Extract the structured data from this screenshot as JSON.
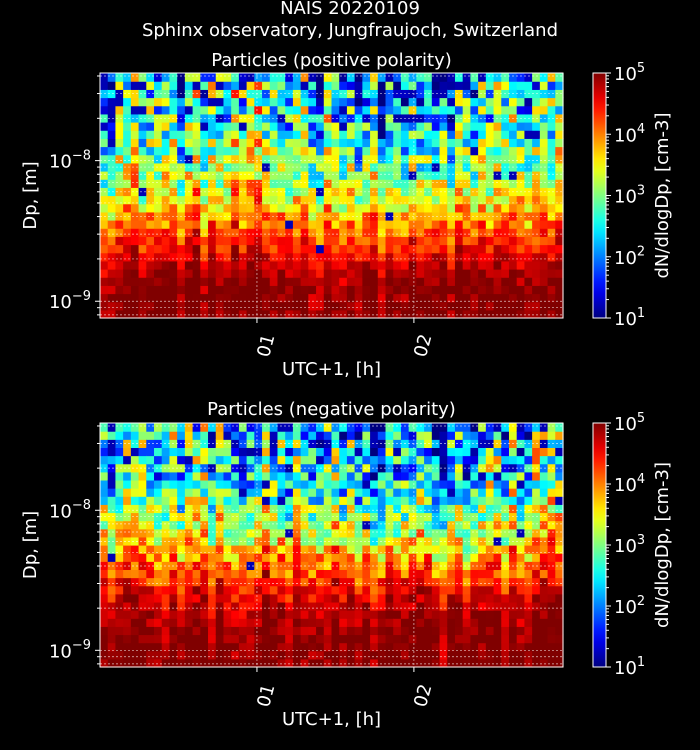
{
  "figure": {
    "title_line1": "NAIS 20220109",
    "title_line2": "Sphinx observatory, Jungfraujoch, Switzerland"
  },
  "colormap": {
    "name": "jet",
    "label": "dN/dlogDp, [cm-3]",
    "ticks": [
      {
        "base": "10",
        "exp": "1"
      },
      {
        "base": "10",
        "exp": "2"
      },
      {
        "base": "10",
        "exp": "3"
      },
      {
        "base": "10",
        "exp": "4"
      },
      {
        "base": "10",
        "exp": "5"
      }
    ]
  },
  "chart_data": [
    {
      "type": "heatmap",
      "title": "Particles (positive polarity)",
      "xlabel": "UTC+1, [h]",
      "ylabel": "Dp, [m]",
      "x_tick_labels": [
        "01",
        "02"
      ],
      "y_tick_labels": [
        {
          "base": "10",
          "exp": "−9"
        },
        {
          "base": "10",
          "exp": "−8"
        }
      ],
      "x_range_hours": [
        0.0,
        2.95
      ],
      "y_range_m": [
        7.6e-10,
        4.2e-08
      ],
      "y_scale": "log",
      "color_range_log10": [
        1,
        5
      ],
      "grid": true,
      "description_profile_log10": {
        "Dp_m": [
          8e-10,
          1e-09,
          1.5e-09,
          2.5e-09,
          4e-09,
          7e-09,
          1.5e-08,
          4e-08
        ],
        "level": [
          5.0,
          5.0,
          4.9,
          4.4,
          3.9,
          3.3,
          2.8,
          2.5
        ]
      }
    },
    {
      "type": "heatmap",
      "title": "Particles (negative polarity)",
      "xlabel": "UTC+1, [h]",
      "ylabel": "Dp, [m]",
      "x_tick_labels": [
        "01",
        "02"
      ],
      "y_tick_labels": [
        {
          "base": "10",
          "exp": "−9"
        },
        {
          "base": "10",
          "exp": "−8"
        }
      ],
      "x_range_hours": [
        0.0,
        2.95
      ],
      "y_range_m": [
        7.6e-10,
        4.2e-08
      ],
      "y_scale": "log",
      "color_range_log10": [
        1,
        5
      ],
      "grid": true,
      "description_profile_log10": {
        "Dp_m": [
          8e-10,
          1e-09,
          1.5e-09,
          2.5e-09,
          4e-09,
          7e-09,
          1.5e-08,
          4e-08
        ],
        "level": [
          5.0,
          5.0,
          4.9,
          4.6,
          4.1,
          3.4,
          2.7,
          2.3
        ]
      }
    }
  ]
}
